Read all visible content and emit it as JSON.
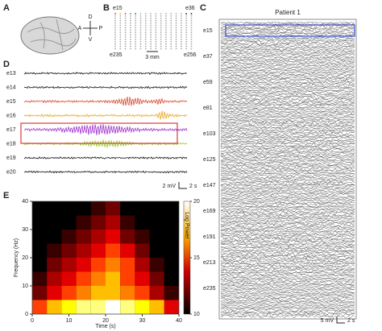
{
  "panels": {
    "A": {
      "label": "A",
      "orientation": {
        "dorsal": "D",
        "ventral": "V",
        "anterior": "A",
        "posterior": "P"
      }
    },
    "B": {
      "label": "B",
      "electrodes": [
        "e15",
        "e36",
        "e235",
        "e256"
      ],
      "scale": "3 mm"
    },
    "C": {
      "label": "C",
      "title": "Patient 1",
      "channels": [
        "e15",
        "e37",
        "e59",
        "e81",
        "e103",
        "e125",
        "e147",
        "e169",
        "e191",
        "e213",
        "e235"
      ],
      "scale_v": "5 mV",
      "scale_t": "2 s"
    },
    "D": {
      "label": "D",
      "channels": [
        {
          "name": "e13",
          "color": "#111111"
        },
        {
          "name": "e14",
          "color": "#111111"
        },
        {
          "name": "e15",
          "color": "#d9472b"
        },
        {
          "name": "e16",
          "color": "#e5a81d"
        },
        {
          "name": "e17",
          "color": "#9b2fc9"
        },
        {
          "name": "e18",
          "color": "#8ccc2a"
        },
        {
          "name": "e19",
          "color": "#111111"
        },
        {
          "name": "e20",
          "color": "#111111"
        }
      ],
      "scale_v": "2 mV",
      "scale_t": "2 s"
    },
    "E": {
      "label": "E"
    }
  },
  "chart_data": {
    "type": "heatmap",
    "x_label": "Time (s)",
    "y_label": "Frequency (Hz)",
    "xlim": [
      0,
      40
    ],
    "xticks": [
      0,
      10,
      20,
      30,
      40
    ],
    "ylim": [
      0,
      40
    ],
    "yticks": [
      0,
      10,
      20,
      30,
      40
    ],
    "x": [
      0,
      4,
      8,
      12,
      16,
      20,
      24,
      28,
      32,
      36,
      40
    ],
    "y": [
      0,
      5,
      10,
      15,
      20,
      25,
      30,
      35,
      40
    ],
    "values": [
      [
        15,
        17,
        18,
        19,
        19,
        20,
        19,
        18,
        17,
        14
      ],
      [
        12,
        14,
        15,
        16,
        17,
        17,
        16,
        15,
        13,
        11
      ],
      [
        11,
        13,
        14,
        15,
        16,
        17,
        15,
        14,
        12,
        10
      ],
      [
        10,
        12,
        13,
        14,
        15,
        16,
        15,
        13,
        11,
        10
      ],
      [
        10,
        11,
        12,
        13,
        14,
        15,
        14,
        12,
        10,
        10
      ],
      [
        10,
        10,
        11,
        12,
        13,
        14,
        12,
        11,
        10,
        10
      ],
      [
        10,
        10,
        10,
        11,
        12,
        13,
        11,
        10,
        10,
        10
      ],
      [
        10,
        10,
        10,
        10,
        11,
        12,
        10,
        10,
        10,
        10
      ]
    ],
    "colorbar_label": "Log Power",
    "clim": [
      10,
      20
    ],
    "cticks": [
      10,
      15,
      20
    ]
  }
}
